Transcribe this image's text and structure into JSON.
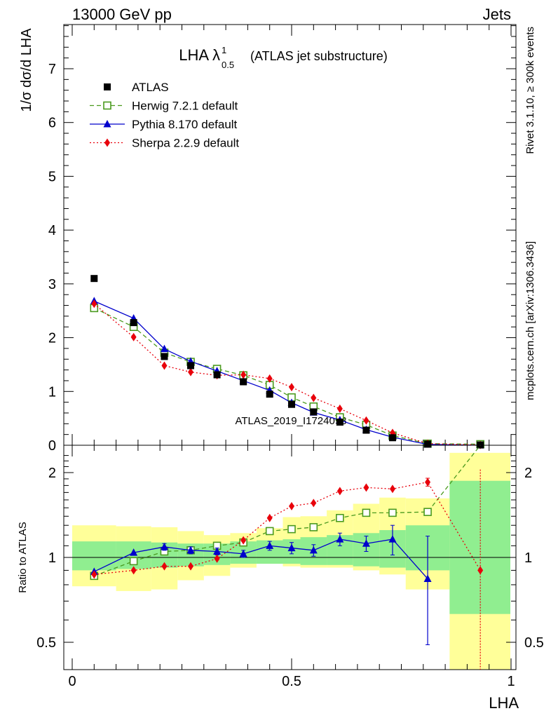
{
  "header": {
    "left": "13000 GeV pp",
    "right": "Jets"
  },
  "side": {
    "top": "Rivet 3.1.10, ≥ 300k events",
    "bottom": "mcplots.cern.ch [arXiv:1306.3436]"
  },
  "watermark": "ATLAS_2019_I1724098",
  "chart_data": [
    {
      "type": "line",
      "title_main": "LHA λ",
      "title_sup": "1",
      "title_sub": "0.5",
      "title_suffix": "(ATLAS jet substructure)",
      "ylabel": "1/σ dσ/d LHA",
      "ylim": [
        0,
        7.8
      ],
      "yticks": [
        0,
        1,
        2,
        3,
        4,
        5,
        6,
        7
      ],
      "xlim": [
        0,
        1
      ],
      "x": [
        0.05,
        0.14,
        0.21,
        0.27,
        0.33,
        0.39,
        0.45,
        0.5,
        0.55,
        0.61,
        0.67,
        0.73,
        0.81,
        0.93
      ],
      "series": [
        {
          "name": "ATLAS",
          "color": "#000000",
          "marker": "square-filled",
          "values": [
            3.1,
            2.28,
            1.65,
            1.48,
            1.31,
            1.18,
            0.95,
            0.76,
            0.62,
            0.43,
            0.28,
            0.14,
            0.02,
            0.005
          ]
        },
        {
          "name": "Herwig 7.2.1 default",
          "color": "#4a9a1e",
          "marker": "square-open",
          "dash": "6,4",
          "values": [
            2.55,
            2.2,
            1.72,
            1.55,
            1.42,
            1.3,
            1.12,
            0.89,
            0.72,
            0.52,
            0.38,
            0.18,
            0.03,
            0.02
          ]
        },
        {
          "name": "Pythia 8.170 default",
          "color": "#0000cc",
          "marker": "triangle",
          "values": [
            2.68,
            2.36,
            1.79,
            1.56,
            1.38,
            1.2,
            1.02,
            0.79,
            0.61,
            0.47,
            0.29,
            0.15,
            0.015,
            0.0
          ]
        },
        {
          "name": "Sherpa 2.2.9 default",
          "color": "#e8000b",
          "marker": "diamond",
          "dash": "2,3",
          "values": [
            2.63,
            2.01,
            1.48,
            1.36,
            1.3,
            1.31,
            1.24,
            1.08,
            0.88,
            0.68,
            0.46,
            0.23,
            0.03,
            0.005
          ]
        }
      ]
    },
    {
      "type": "line",
      "ylabel": "Ratio to ATLAS",
      "xlabel": "LHA",
      "ylim": [
        0.35,
        2.35
      ],
      "yticks": [
        "0.5",
        "1",
        "2"
      ],
      "xticks": [
        "0",
        "0.5",
        "1"
      ],
      "xlim": [
        0,
        1
      ],
      "bins": [
        [
          0,
          0.1
        ],
        [
          0.1,
          0.18
        ],
        [
          0.18,
          0.24
        ],
        [
          0.24,
          0.3
        ],
        [
          0.3,
          0.36
        ],
        [
          0.36,
          0.42
        ],
        [
          0.42,
          0.48
        ],
        [
          0.48,
          0.52
        ],
        [
          0.52,
          0.58
        ],
        [
          0.58,
          0.64
        ],
        [
          0.64,
          0.7
        ],
        [
          0.7,
          0.76
        ],
        [
          0.76,
          0.86
        ],
        [
          0.86,
          1.0
        ]
      ],
      "band_green": [
        [
          0.9,
          1.14
        ],
        [
          0.91,
          1.14
        ],
        [
          0.92,
          1.13
        ],
        [
          0.93,
          1.12
        ],
        [
          0.94,
          1.12
        ],
        [
          0.95,
          1.14
        ],
        [
          0.95,
          1.15
        ],
        [
          0.95,
          1.16
        ],
        [
          0.94,
          1.18
        ],
        [
          0.94,
          1.2
        ],
        [
          0.93,
          1.22
        ],
        [
          0.92,
          1.25
        ],
        [
          0.9,
          1.3
        ],
        [
          0.63,
          1.87
        ]
      ],
      "band_yellow": [
        [
          0.79,
          1.3
        ],
        [
          0.76,
          1.29
        ],
        [
          0.77,
          1.28
        ],
        [
          0.83,
          1.24
        ],
        [
          0.86,
          1.2
        ],
        [
          0.92,
          1.22
        ],
        [
          0.95,
          1.27
        ],
        [
          0.93,
          1.39
        ],
        [
          0.92,
          1.4
        ],
        [
          0.92,
          1.47
        ],
        [
          0.9,
          1.55
        ],
        [
          0.87,
          1.63
        ],
        [
          0.77,
          1.62
        ],
        [
          0.35,
          2.35
        ]
      ],
      "series": [
        {
          "name": "Herwig 7.2.1 default",
          "color": "#4a9a1e",
          "marker": "square-open",
          "dash": "6,4",
          "values": [
            0.86,
            0.97,
            1.05,
            1.06,
            1.1,
            1.13,
            1.24,
            1.26,
            1.28,
            1.38,
            1.44,
            1.44,
            1.45,
            2.8
          ]
        },
        {
          "name": "Pythia 8.170 default",
          "color": "#0000cc",
          "marker": "triangle",
          "values": [
            0.89,
            1.04,
            1.09,
            1.06,
            1.05,
            1.03,
            1.1,
            1.08,
            1.06,
            1.16,
            1.12,
            1.16,
            0.84,
            null
          ],
          "errors": [
            0,
            0,
            0.03,
            0.03,
            0.03,
            0.03,
            0.04,
            0.05,
            0.05,
            0.06,
            0.07,
            0.14,
            0.35,
            0
          ]
        },
        {
          "name": "Sherpa 2.2.9 default",
          "color": "#e8000b",
          "marker": "diamond",
          "dash": "2,3",
          "values": [
            0.87,
            0.9,
            0.93,
            0.93,
            0.99,
            1.15,
            1.38,
            1.52,
            1.56,
            1.72,
            1.77,
            1.75,
            1.85,
            0.9
          ],
          "errors": [
            0,
            0,
            0,
            0,
            0,
            0,
            0,
            0,
            0,
            0,
            0,
            0,
            0.06,
            1.15
          ]
        }
      ]
    }
  ]
}
